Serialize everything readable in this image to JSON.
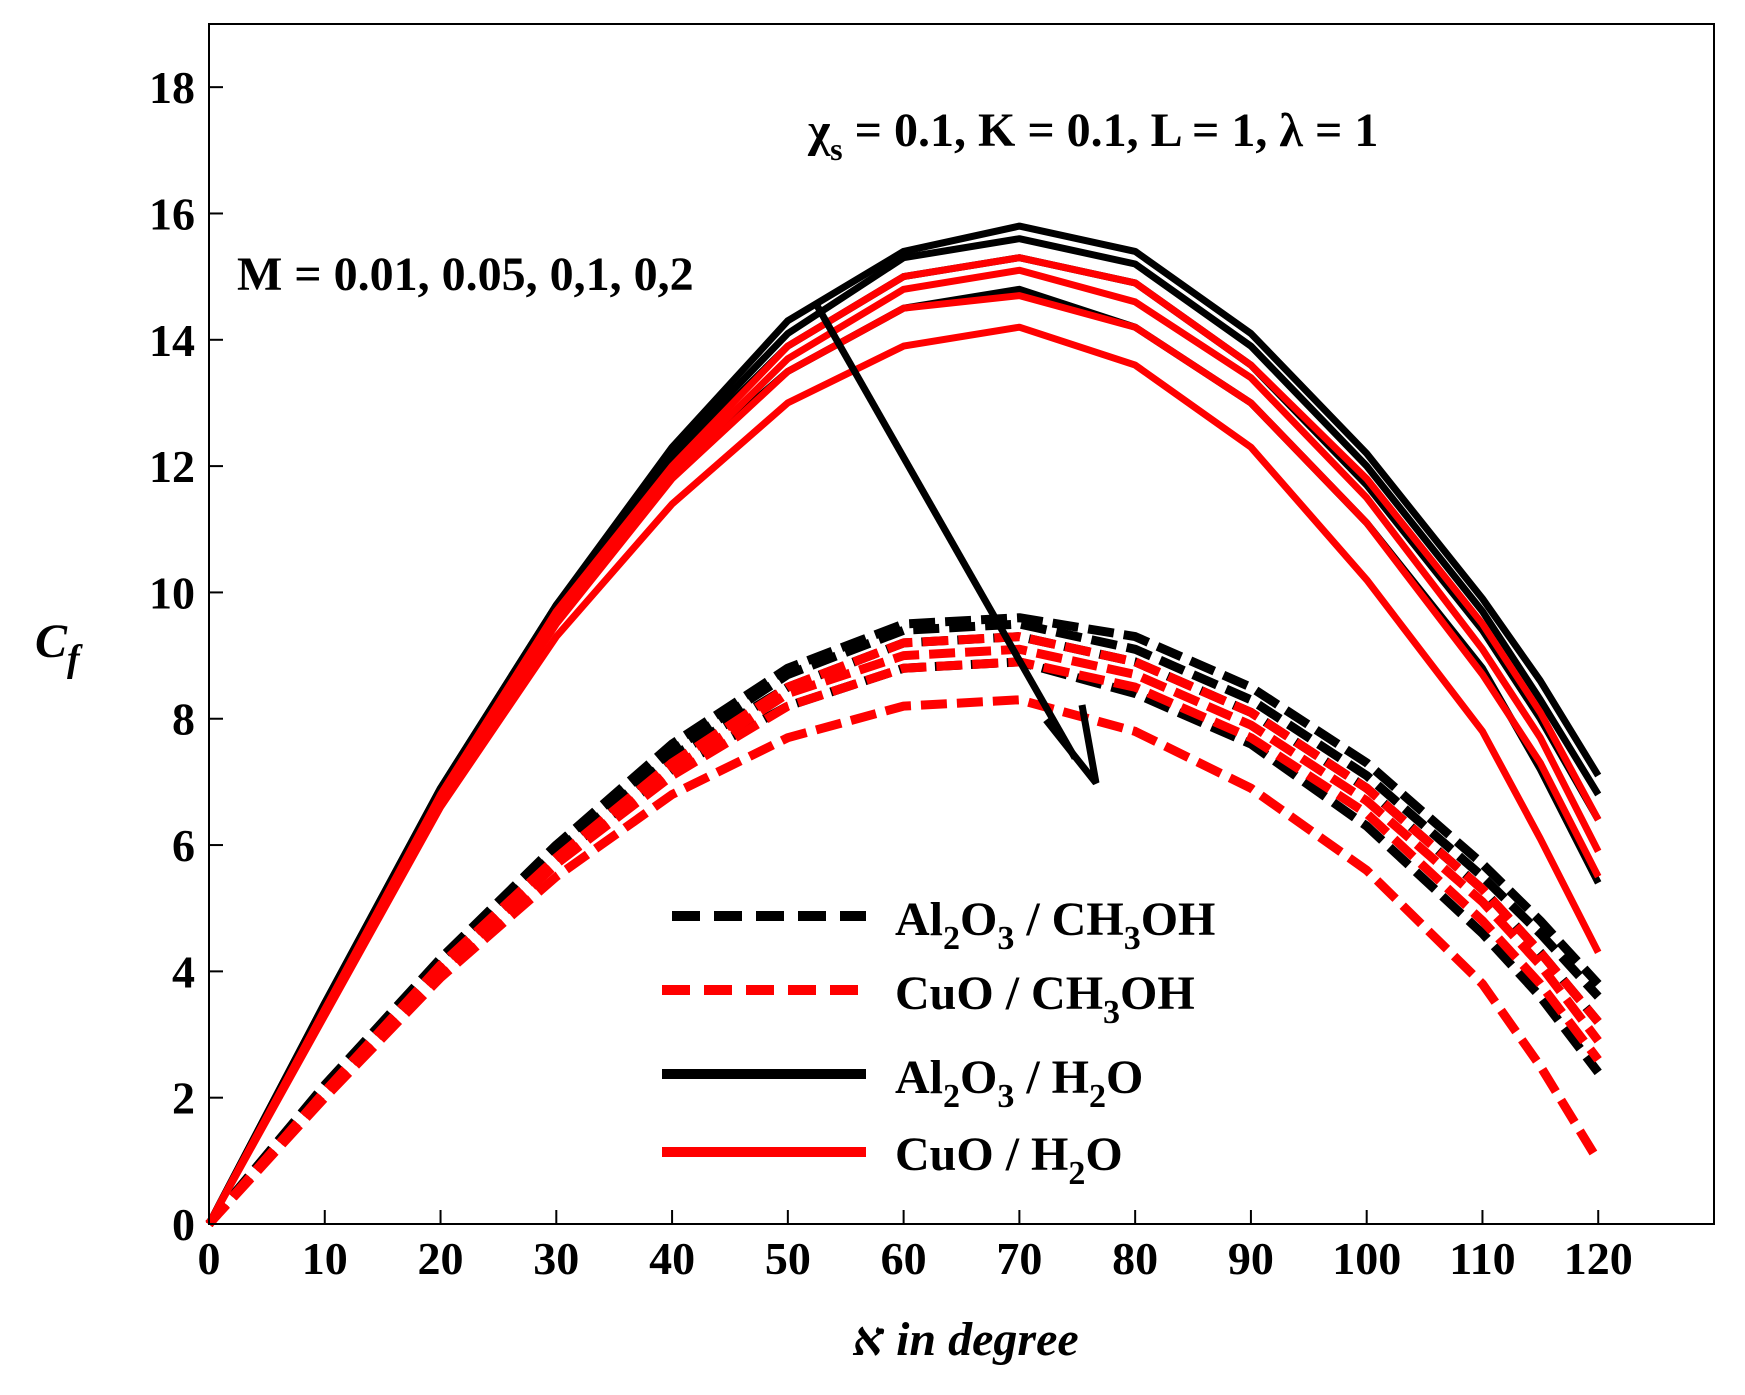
{
  "chart_data": {
    "type": "line",
    "title": "",
    "xlabel": "א in degree",
    "ylabel_main": "C",
    "ylabel_sub": "f",
    "xlim": [
      0,
      130
    ],
    "ylim": [
      0,
      19
    ],
    "xticks": [
      0,
      10,
      20,
      30,
      40,
      50,
      60,
      70,
      80,
      90,
      100,
      110,
      120
    ],
    "yticks": [
      0,
      2,
      4,
      6,
      8,
      10,
      12,
      14,
      16,
      18
    ],
    "x": [
      0,
      10,
      20,
      30,
      40,
      50,
      60,
      70,
      80,
      90,
      100,
      110,
      115,
      120
    ],
    "annotations": {
      "params": {
        "chi": "χ",
        "sub": "s",
        "rest": " = 0.1, K = 0.1, L = 1, λ = 1"
      },
      "m_label": "M = 0.01, 0.05, 0,1, 0,2"
    },
    "legend": [
      {
        "base": "Al",
        "s1": "2",
        "mid": "O",
        "s2": "3",
        "tail_a": " / CH",
        "s3": "3",
        "tail_b": "OH",
        "color": "#000000",
        "dashed": true
      },
      {
        "base": "CuO / CH",
        "s1": "3",
        "mid": "OH",
        "color": "#ff0000",
        "dashed": true
      },
      {
        "base": "Al",
        "s1": "2",
        "mid": "O",
        "s2": "3",
        "tail_a": " / H",
        "s3": "2",
        "tail_b": "O",
        "color": "#000000",
        "dashed": false
      },
      {
        "base": "CuO / H",
        "s1": "2",
        "mid": "O",
        "color": "#ff0000",
        "dashed": false
      }
    ],
    "series": [
      {
        "name": "Al2O3 / H2O, M = 0.01",
        "color": "#000000",
        "dashed": false,
        "values": [
          0,
          3.5,
          6.9,
          9.8,
          12.3,
          14.3,
          15.4,
          15.8,
          15.4,
          14.1,
          12.2,
          9.9,
          8.6,
          7.1
        ]
      },
      {
        "name": "Al2O3 / H2O, M = 0.05",
        "color": "#000000",
        "dashed": false,
        "values": [
          0,
          3.5,
          6.9,
          9.8,
          12.2,
          14.1,
          15.3,
          15.6,
          15.2,
          13.9,
          12.0,
          9.7,
          8.3,
          6.8
        ]
      },
      {
        "name": "Al2O3 / H2O, M = 0.1",
        "color": "#000000",
        "dashed": false,
        "values": [
          0,
          3.5,
          6.8,
          9.8,
          12.1,
          13.9,
          15.0,
          15.3,
          14.9,
          13.6,
          11.7,
          9.4,
          8.0,
          6.4
        ]
      },
      {
        "name": "Al2O3 / H2O, M = 0.2",
        "color": "#000000",
        "dashed": false,
        "values": [
          0,
          3.4,
          6.8,
          9.7,
          11.9,
          13.5,
          14.5,
          14.8,
          14.2,
          13.0,
          11.1,
          8.8,
          7.2,
          5.4
        ]
      },
      {
        "name": "CuO / H2O, M = 0.01",
        "color": "#ff0000",
        "dashed": false,
        "values": [
          0,
          3.4,
          6.8,
          9.7,
          12.0,
          13.9,
          15.0,
          15.3,
          14.9,
          13.6,
          11.8,
          9.5,
          8.1,
          6.4
        ]
      },
      {
        "name": "CuO / H2O, M = 0.05",
        "color": "#ff0000",
        "dashed": false,
        "values": [
          0,
          3.4,
          6.7,
          9.6,
          11.9,
          13.7,
          14.8,
          15.1,
          14.6,
          13.4,
          11.5,
          9.1,
          7.7,
          5.9
        ]
      },
      {
        "name": "CuO / H2O, M = 0.1",
        "color": "#ff0000",
        "dashed": false,
        "values": [
          0,
          3.4,
          6.7,
          9.5,
          11.8,
          13.5,
          14.5,
          14.7,
          14.2,
          13.0,
          11.1,
          8.7,
          7.3,
          5.5
        ]
      },
      {
        "name": "CuO / H2O, M = 0.2",
        "color": "#ff0000",
        "dashed": false,
        "values": [
          0,
          3.3,
          6.6,
          9.3,
          11.4,
          13.0,
          13.9,
          14.2,
          13.6,
          12.3,
          10.2,
          7.8,
          6.1,
          4.3
        ]
      },
      {
        "name": "Al2O3 / CH3OH, M = 0.01",
        "color": "#000000",
        "dashed": true,
        "values": [
          0,
          2.2,
          4.2,
          6.0,
          7.6,
          8.8,
          9.5,
          9.6,
          9.3,
          8.5,
          7.3,
          5.7,
          4.8,
          3.8
        ]
      },
      {
        "name": "Al2O3 / CH3OH, M = 0.05",
        "color": "#000000",
        "dashed": true,
        "values": [
          0,
          2.2,
          4.2,
          6.0,
          7.5,
          8.7,
          9.4,
          9.5,
          9.1,
          8.3,
          7.1,
          5.5,
          4.6,
          3.6
        ]
      },
      {
        "name": "Al2O3 / CH3OH, M = 0.1",
        "color": "#000000",
        "dashed": true,
        "values": [
          0,
          2.1,
          4.1,
          5.9,
          7.4,
          8.5,
          9.2,
          9.3,
          8.9,
          8.1,
          6.9,
          5.3,
          4.3,
          3.2
        ]
      },
      {
        "name": "Al2O3 / CH3OH, M = 0.2",
        "color": "#000000",
        "dashed": true,
        "values": [
          0,
          2.1,
          4.1,
          5.8,
          7.2,
          8.2,
          8.8,
          8.9,
          8.4,
          7.6,
          6.3,
          4.6,
          3.6,
          2.4
        ]
      },
      {
        "name": "CuO / CH3OH, M = 0.01",
        "color": "#ff0000",
        "dashed": true,
        "values": [
          0,
          2.1,
          4.1,
          5.8,
          7.3,
          8.5,
          9.2,
          9.3,
          8.9,
          8.1,
          6.9,
          5.3,
          4.3,
          3.2
        ]
      },
      {
        "name": "CuO / CH3OH, M = 0.05",
        "color": "#ff0000",
        "dashed": true,
        "values": [
          0,
          2.1,
          4.0,
          5.7,
          7.2,
          8.4,
          9.0,
          9.1,
          8.7,
          7.9,
          6.7,
          5.1,
          4.1,
          2.9
        ]
      },
      {
        "name": "CuO / CH3OH, M = 0.1",
        "color": "#ff0000",
        "dashed": true,
        "values": [
          0,
          2.1,
          4.0,
          5.7,
          7.1,
          8.2,
          8.8,
          8.9,
          8.5,
          7.7,
          6.5,
          4.8,
          3.8,
          2.6
        ]
      },
      {
        "name": "CuO / CH3OH, M = 0.2",
        "color": "#ff0000",
        "dashed": true,
        "values": [
          0,
          2.0,
          3.9,
          5.5,
          6.8,
          7.7,
          8.2,
          8.3,
          7.8,
          6.9,
          5.6,
          3.8,
          2.5,
          1.0
        ]
      }
    ]
  }
}
